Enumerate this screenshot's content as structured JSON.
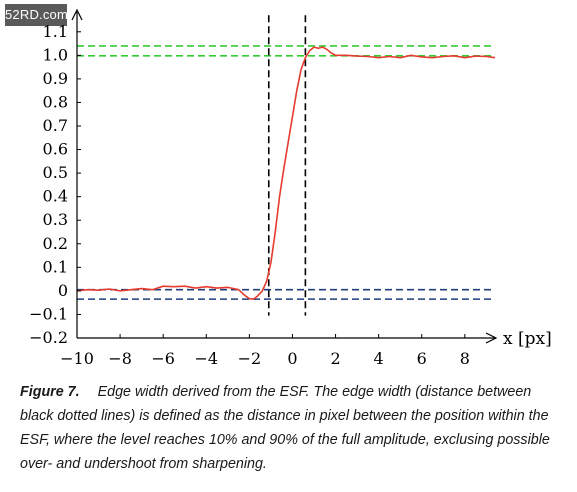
{
  "watermark": {
    "text": "52RD.com"
  },
  "colors": {
    "esf_line": "#e63b2e",
    "upper_bounds": "#33cc33",
    "lower_bounds": "#1f3f7a",
    "edge_markers": "#000000"
  },
  "chart_data": {
    "type": "line",
    "xlabel": "x [px]",
    "ylabel": "",
    "xlim": [
      -10,
      9.4
    ],
    "ylim": [
      -0.2,
      1.15
    ],
    "x_ticks": [
      -10,
      -8,
      -6,
      -4,
      -2,
      0,
      2,
      4,
      6,
      8
    ],
    "x_tick_labels": [
      "−10",
      "−8",
      "−6",
      "−4",
      "−2",
      "0",
      "2",
      "4",
      "6",
      "8"
    ],
    "y_ticks": [
      -0.2,
      -0.1,
      0,
      0.1,
      0.2,
      0.3,
      0.4,
      0.5,
      0.6,
      0.7,
      0.8,
      0.9,
      1.0,
      1.1
    ],
    "y_tick_labels": [
      "−0.2",
      "−0.1",
      "0",
      "0.1",
      "0.2",
      "0.3",
      "0.4",
      "0.5",
      "0.6",
      "0.7",
      "0.8",
      "0.9",
      "1.0",
      "1.1"
    ],
    "grid": false,
    "series": [
      {
        "x": [
          -10,
          -9.5,
          -9,
          -8.5,
          -8,
          -7.5,
          -7,
          -6.5,
          -6,
          -5.5,
          -5,
          -4.5,
          -4,
          -3.5,
          -3,
          -2.5,
          -2.2,
          -2,
          -1.8,
          -1.6,
          -1.4,
          -1.2,
          -1,
          -0.8,
          -0.6,
          -0.4,
          -0.2,
          0,
          0.2,
          0.4,
          0.6,
          0.8,
          1,
          1.2,
          1.4,
          1.6,
          1.8,
          2,
          2.5,
          3,
          3.5,
          4,
          4.5,
          5,
          5.5,
          6,
          6.5,
          7,
          7.5,
          8,
          8.5,
          9,
          9.4
        ],
        "values": [
          0.0,
          0.005,
          0.003,
          0.008,
          0.0,
          0.005,
          0.01,
          0.005,
          0.02,
          0.018,
          0.02,
          0.012,
          0.018,
          0.012,
          0.015,
          0.005,
          -0.02,
          -0.033,
          -0.035,
          -0.02,
          0.0,
          0.04,
          0.12,
          0.25,
          0.4,
          0.52,
          0.63,
          0.74,
          0.85,
          0.94,
          0.99,
          1.02,
          1.035,
          1.03,
          1.035,
          1.025,
          1.01,
          1.0,
          1.0,
          0.997,
          0.995,
          0.99,
          0.995,
          0.99,
          1.0,
          0.993,
          0.99,
          0.995,
          0.998,
          0.99,
          0.997,
          0.995,
          0.99
        ]
      }
    ],
    "reference_lines": {
      "horizontal": [
        1.04,
        0.998,
        0.005,
        -0.035
      ],
      "vertical": [
        -1.1,
        0.6
      ]
    }
  },
  "caption": {
    "label": "Figure 7.",
    "text": "Edge width derived from the ESF. The edge width (distance between black dotted lines) is defined as the distance in pixel between the position within the ESF, where the level reaches 10% and 90% of the full amplitude, exclusing possible over- and undershoot from sharpening."
  }
}
